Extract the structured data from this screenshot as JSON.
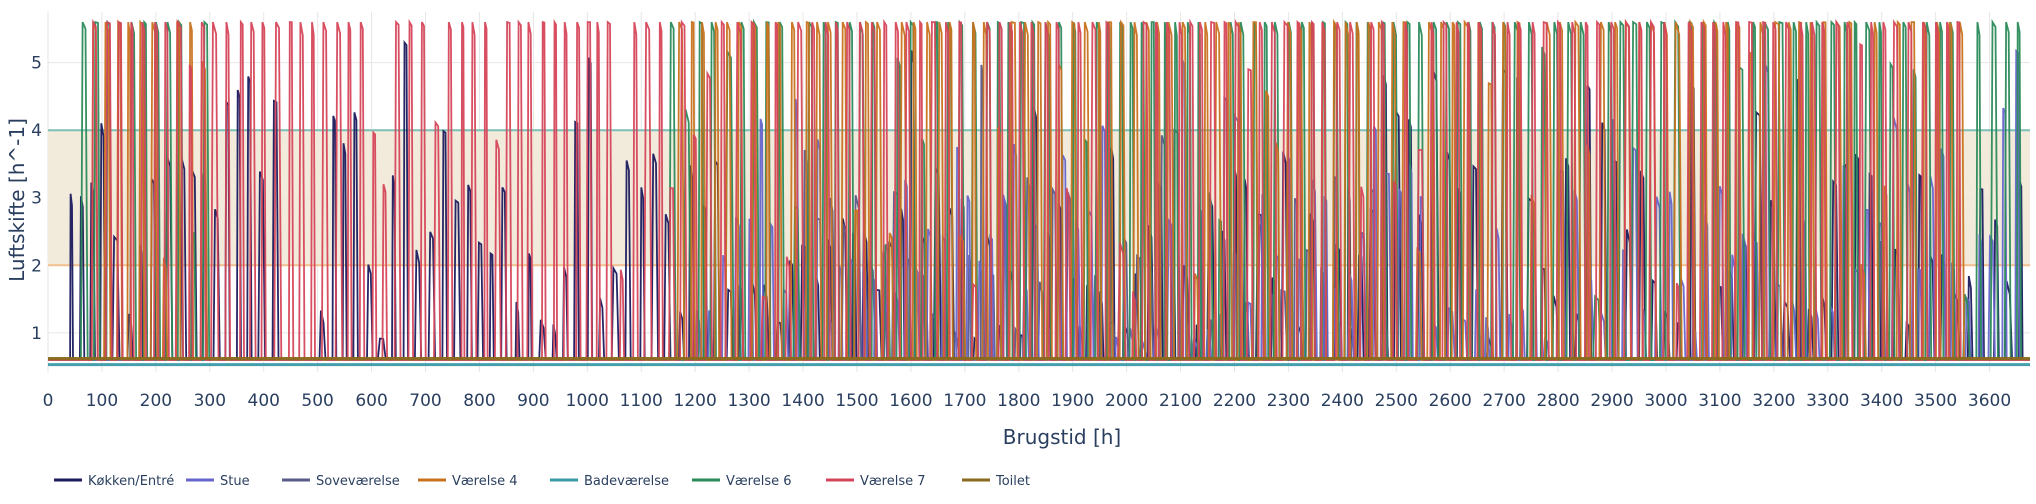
{
  "chart_data": {
    "type": "line",
    "title": "",
    "xlabel": "Brugstid [h]",
    "ylabel": "Luftskifte [h^-1]",
    "xlim": [
      0,
      3675
    ],
    "ylim": [
      0.42,
      5.75
    ],
    "x_ticks": [
      0,
      100,
      200,
      300,
      400,
      500,
      600,
      700,
      800,
      900,
      1000,
      1100,
      1200,
      1300,
      1400,
      1500,
      1600,
      1700,
      1800,
      1900,
      2000,
      2100,
      2200,
      2300,
      2400,
      2500,
      2600,
      2700,
      2800,
      2900,
      3000,
      3100,
      3200,
      3300,
      3400,
      3500,
      3600
    ],
    "y_ticks": [
      1,
      2,
      3,
      4,
      5
    ],
    "grid": true,
    "legend_position": "bottom-left",
    "bands": [
      {
        "y0": 2,
        "y1": 4,
        "fill": "#f0e8d6",
        "lower_line_color": "#f2c08f",
        "upper_line_color": "#7cbfb5"
      }
    ],
    "baseline": 0.6,
    "series": [
      {
        "name": "Køkken/Entré",
        "color": "#1a1a5e",
        "peak_level": 2.2,
        "window_hours": [
          [
            40,
            420
          ],
          [
            500,
            1060
          ],
          [
            1060,
            3670
          ]
        ]
      },
      {
        "name": "Stue",
        "color": "#6666cc",
        "peak_level": 1.8,
        "window_hours": [
          [
            1200,
            3650
          ]
        ]
      },
      {
        "name": "Soveværelse",
        "color": "#5a5a8a",
        "peak_level": 2.0,
        "window_hours": [
          [
            1400,
            2500
          ]
        ]
      },
      {
        "name": "Værelse 4",
        "color": "#c8721e",
        "peak_level": 5.6,
        "window_hours": [
          [
            80,
            300
          ],
          [
            1150,
            3560
          ]
        ]
      },
      {
        "name": "Badeværelse",
        "color": "#3b9aa8",
        "peak_level": 0.53,
        "window_hours": [
          [
            0,
            3675
          ]
        ]
      },
      {
        "name": "Værelse 6",
        "color": "#2a8a5a",
        "peak_level": 5.6,
        "window_hours": [
          [
            60,
            300
          ],
          [
            1150,
            3650
          ]
        ]
      },
      {
        "name": "Værelse 7",
        "color": "#d6465a",
        "peak_level": 5.6,
        "window_hours": [
          [
            80,
            300
          ],
          [
            300,
            1150
          ],
          [
            1150,
            3560
          ]
        ]
      },
      {
        "name": "Toilet",
        "color": "#8a6a1e",
        "peak_level": 0.62,
        "window_hours": [
          [
            0,
            3675
          ]
        ]
      }
    ]
  }
}
